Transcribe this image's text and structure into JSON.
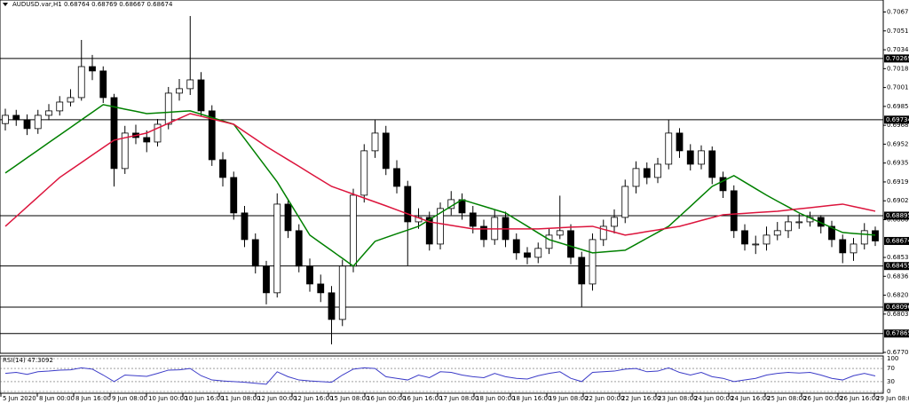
{
  "chart_data": [
    {
      "type": "candlestick",
      "title": "AUDUSD.var,H1  0.68764 0.68769 0.68667 0.68674",
      "open": [
        0.697,
        0.69772,
        0.69733,
        0.69656,
        0.69772,
        0.69811,
        0.69888,
        0.69927,
        0.70198,
        0.7016,
        0.69927,
        0.69307,
        0.69617,
        0.69578,
        0.69539,
        0.69694,
        0.69966,
        0.70005,
        0.70082,
        0.69811,
        0.69384,
        0.69229,
        0.68919,
        0.68686,
        0.68454,
        0.68221,
        0.68996,
        0.68764,
        0.68454,
        0.68298,
        0.68221,
        0.67988,
        0.68454,
        0.69074,
        0.69462,
        0.69617,
        0.69307,
        0.69151,
        0.68841,
        0.6888,
        0.68647,
        0.68958,
        0.69035,
        0.68919,
        0.68802,
        0.68686,
        0.6888,
        0.68686,
        0.6857,
        0.68531,
        0.68609,
        0.68725,
        0.68764,
        0.68531,
        0.68298,
        0.68686,
        0.68802,
        0.6888,
        0.69151,
        0.69307,
        0.69229,
        0.69345,
        0.69617,
        0.69462,
        0.69345,
        0.69462,
        0.69229,
        0.69113,
        0.68764,
        0.68647,
        0.68647,
        0.68725,
        0.68764,
        0.68841,
        0.68841,
        0.6888,
        0.68802,
        0.68686,
        0.6857,
        0.68647,
        0.68764
      ],
      "high": [
        0.6983,
        0.6982,
        0.6978,
        0.6982,
        0.6987,
        0.6994,
        0.7,
        0.70431,
        0.703,
        0.702,
        0.6996,
        0.6968,
        0.6969,
        0.6964,
        0.6974,
        0.7002,
        0.7009,
        0.7064,
        0.7015,
        0.6986,
        0.6945,
        0.6928,
        0.6898,
        0.6874,
        0.685,
        0.6909,
        0.6904,
        0.6882,
        0.6852,
        0.6838,
        0.6828,
        0.6851,
        0.6913,
        0.6952,
        0.69734,
        0.6968,
        0.6938,
        0.692,
        0.6896,
        0.6893,
        0.6901,
        0.6911,
        0.6909,
        0.6898,
        0.6886,
        0.6895,
        0.6893,
        0.6874,
        0.6862,
        0.6866,
        0.6879,
        0.6907,
        0.6882,
        0.6858,
        0.6874,
        0.6886,
        0.6895,
        0.6921,
        0.6937,
        0.6936,
        0.694,
        0.69734,
        0.6966,
        0.6952,
        0.6951,
        0.695,
        0.6928,
        0.6916,
        0.6882,
        0.6872,
        0.688,
        0.6884,
        0.689,
        0.6891,
        0.6893,
        0.689,
        0.6885,
        0.6873,
        0.687,
        0.6883,
        0.688
      ],
      "low": [
        0.6964,
        0.6968,
        0.696,
        0.6961,
        0.6973,
        0.6977,
        0.6985,
        0.699,
        0.7008,
        0.6988,
        0.6915,
        0.6926,
        0.6952,
        0.6945,
        0.695,
        0.6965,
        0.699,
        0.6995,
        0.6976,
        0.6933,
        0.6915,
        0.6886,
        0.6862,
        0.6839,
        0.6812,
        0.6818,
        0.687,
        0.684,
        0.6823,
        0.6814,
        0.67771,
        0.6793,
        0.684,
        0.6901,
        0.694,
        0.6925,
        0.6909,
        0.6846,
        0.6878,
        0.6859,
        0.686,
        0.689,
        0.6886,
        0.6874,
        0.6862,
        0.6864,
        0.6862,
        0.6851,
        0.6847,
        0.6848,
        0.6856,
        0.6869,
        0.6847,
        0.681,
        0.6824,
        0.6863,
        0.6874,
        0.6883,
        0.6909,
        0.6917,
        0.6918,
        0.693,
        0.694,
        0.6929,
        0.693,
        0.6917,
        0.6905,
        0.687,
        0.6859,
        0.6856,
        0.6859,
        0.6868,
        0.687,
        0.6878,
        0.688,
        0.6874,
        0.6862,
        0.6848,
        0.685,
        0.686,
        0.6863
      ],
      "close": [
        0.69772,
        0.69733,
        0.69656,
        0.69772,
        0.69811,
        0.69888,
        0.69927,
        0.70198,
        0.7016,
        0.69927,
        0.69307,
        0.69617,
        0.69578,
        0.69539,
        0.69694,
        0.69966,
        0.70005,
        0.70082,
        0.69811,
        0.69384,
        0.69229,
        0.68919,
        0.68686,
        0.68454,
        0.68221,
        0.68996,
        0.68764,
        0.68454,
        0.68298,
        0.68221,
        0.67988,
        0.68454,
        0.69074,
        0.69462,
        0.69617,
        0.69307,
        0.69151,
        0.68841,
        0.6888,
        0.68647,
        0.68958,
        0.69035,
        0.68919,
        0.68802,
        0.68686,
        0.6888,
        0.68686,
        0.6857,
        0.68531,
        0.68609,
        0.68725,
        0.68764,
        0.68531,
        0.68298,
        0.68686,
        0.68802,
        0.6888,
        0.69151,
        0.69307,
        0.69229,
        0.69345,
        0.69617,
        0.69462,
        0.69345,
        0.69462,
        0.69229,
        0.69113,
        0.68764,
        0.68647,
        0.68647,
        0.68725,
        0.68764,
        0.68841,
        0.68841,
        0.6888,
        0.68802,
        0.68686,
        0.6857,
        0.68647,
        0.68764,
        0.68674
      ],
      "overlays": [
        {
          "color": "#008000",
          "values": [
            0.69268,
            0.69334,
            0.69401,
            0.69467,
            0.69534,
            0.696,
            0.69666,
            0.69733,
            0.69799,
            0.69865,
            0.69846,
            0.69826,
            0.69807,
            0.69787,
            0.69793,
            0.69799,
            0.69805,
            0.69811,
            0.69782,
            0.69752,
            0.69723,
            0.69694,
            0.69568,
            0.69442,
            0.69316,
            0.6919,
            0.69035,
            0.6888,
            0.68725,
            0.68657,
            0.6859,
            0.68522,
            0.68454,
            0.68563,
            0.68671,
            0.68704,
            0.68737,
            0.68769,
            0.68802,
            0.6886,
            0.68919,
            0.68977,
            0.69035,
            0.69006,
            0.68977,
            0.68948,
            0.68919,
            0.68861,
            0.68803,
            0.68744,
            0.68686,
            0.68657,
            0.68628,
            0.68599,
            0.6857,
            0.68578,
            0.68585,
            0.68593,
            0.68645,
            0.68698,
            0.6875,
            0.68802,
            0.68889,
            0.68976,
            0.69064,
            0.69151,
            0.69198,
            0.69245,
            0.69188,
            0.69131,
            0.69074,
            0.69022,
            0.68971,
            0.68919,
            0.68876,
            0.68833,
            0.6879,
            0.68748,
            0.6874,
            0.68733,
            0.68725
          ]
        },
        {
          "color": "#dc143c",
          "values": [
            0.68802,
            0.68887,
            0.68973,
            0.69058,
            0.69144,
            0.69229,
            0.69294,
            0.69359,
            0.69425,
            0.6949,
            0.69555,
            0.69576,
            0.69596,
            0.69617,
            0.6966,
            0.69702,
            0.69745,
            0.69787,
            0.69764,
            0.6974,
            0.69717,
            0.69694,
            0.69629,
            0.69565,
            0.695,
            0.69442,
            0.69384,
            0.69326,
            0.69267,
            0.69209,
            0.69151,
            0.69117,
            0.69083,
            0.69049,
            0.69015,
            0.68981,
            0.68946,
            0.68911,
            0.68876,
            0.68841,
            0.68826,
            0.6881,
            0.68795,
            0.68779,
            0.68779,
            0.68779,
            0.68779,
            0.68779,
            0.68779,
            0.68779,
            0.68784,
            0.68789,
            0.68795,
            0.68798,
            0.68802,
            0.68776,
            0.68751,
            0.68725,
            0.6874,
            0.68756,
            0.68771,
            0.68787,
            0.68802,
            0.68827,
            0.68853,
            0.68878,
            0.68903,
            0.68909,
            0.68915,
            0.68922,
            0.68928,
            0.68934,
            0.68944,
            0.68955,
            0.68965,
            0.68975,
            0.68986,
            0.68996,
            0.68975,
            0.68955,
            0.68934
          ]
        }
      ],
      "levels": [
        0.70269,
        0.69734,
        0.68895,
        0.68455,
        0.68096,
        0.67865
      ],
      "last_price": 0.68674,
      "ylim": [
        0.677,
        0.7078
      ],
      "yticks": [
        0.70675,
        {
          "value": 0.7051,
          "label": "0.70510"
        },
        0.70345,
        {
          "value": 0.7018,
          "label": "0.70180"
        },
        0.70015,
        {
          "value": 0.6985,
          "label": "0.69850"
        },
        0.69685,
        {
          "value": 0.6952,
          "label": "0.69520"
        },
        0.69355,
        {
          "value": 0.6919,
          "label": "0.69190"
        },
        0.69025,
        {
          "value": 0.6886,
          "label": "0.68860"
        },
        {
          "value": 0.6853,
          "label": "0.68530"
        },
        0.68365,
        {
          "value": 0.682,
          "label": "0.68200"
        },
        0.68035,
        {
          "value": 0.677,
          "label": "0.67700"
        }
      ],
      "x_labels": [
        "5 Jun 2020",
        "8 Jun 00:00",
        "8 Jun 16:00",
        "9 Jun 08:00",
        "10 Jun 00:00",
        "10 Jun 16:00",
        "11 Jun 08:00",
        "12 Jun 00:00",
        "12 Jun 16:00",
        "15 Jun 08:00",
        "16 Jun 00:00",
        "16 Jun 16:00",
        "17 Jun 08:00",
        "18 Jun 00:00",
        "18 Jun 16:00",
        "19 Jun 08:00",
        "22 Jun 00:00",
        "22 Jun 16:00",
        "23 Jun 08:00",
        "24 Jun 00:00",
        "24 Jun 16:00",
        "25 Jun 08:00",
        "26 Jun 00:00",
        "26 Jun 16:00",
        "29 Jun 08:00"
      ],
      "up_color": "#ffffff",
      "down_color": "#000000"
    },
    {
      "type": "line",
      "title": "RSI(14) 47.3092",
      "values": [
        55,
        58,
        52,
        60,
        62,
        65,
        66,
        72,
        68,
        50,
        30,
        50,
        48,
        46,
        55,
        65,
        66,
        70,
        48,
        35,
        32,
        30,
        28,
        25,
        22,
        60,
        45,
        35,
        32,
        30,
        28,
        50,
        68,
        72,
        70,
        45,
        40,
        35,
        50,
        42,
        60,
        58,
        50,
        45,
        42,
        55,
        45,
        40,
        38,
        48,
        55,
        60,
        40,
        30,
        58,
        60,
        62,
        68,
        70,
        60,
        62,
        72,
        58,
        50,
        58,
        45,
        40,
        30,
        35,
        40,
        50,
        55,
        58,
        56,
        58,
        50,
        40,
        35,
        48,
        55,
        47.3092
      ],
      "color": "#3c3cc8",
      "ylim": [
        0,
        100
      ],
      "yticks": [
        100,
        70,
        30,
        0
      ]
    }
  ]
}
